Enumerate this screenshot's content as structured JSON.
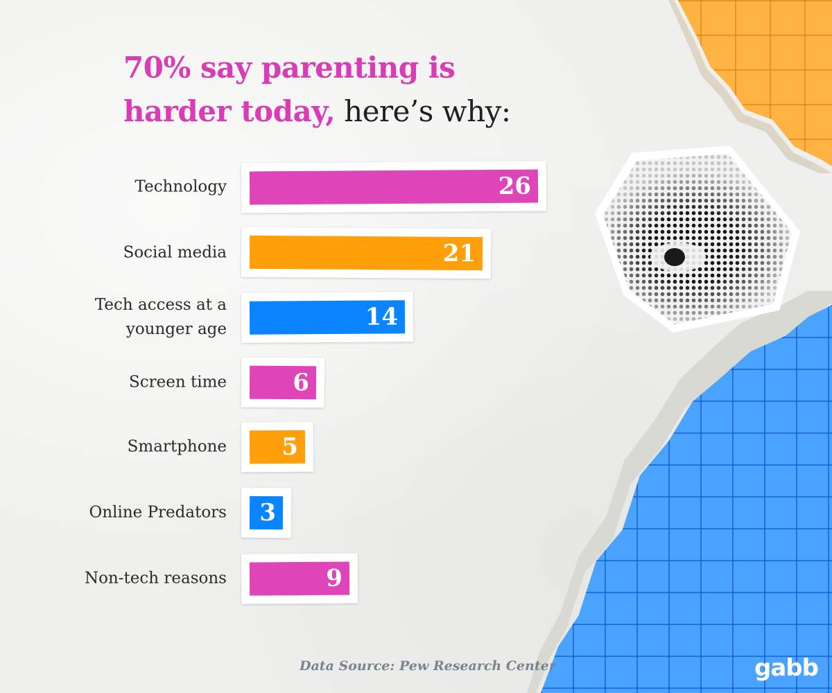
{
  "title": {
    "highlight_line1": "70% say parenting is",
    "highlight_line2": "harder today,",
    "rest": " here’s why:"
  },
  "chart_data": {
    "type": "bar",
    "orientation": "horizontal",
    "categories": [
      "Technology",
      "Social media",
      "Tech access at a younger age",
      "Screen time",
      "Smartphone",
      "Online Predators",
      "Non-tech reasons"
    ],
    "label_lines": [
      [
        "Technology"
      ],
      [
        "Social media"
      ],
      [
        "Tech access at a",
        "younger age"
      ],
      [
        "Screen time"
      ],
      [
        "Smartphone"
      ],
      [
        "Online Predators"
      ],
      [
        "Non-tech reasons"
      ]
    ],
    "values": [
      26,
      21,
      14,
      6,
      5,
      3,
      9
    ],
    "colors": [
      "#dd45b9",
      "#ff9f0a",
      "#0a84ff",
      "#dd45b9",
      "#ff9f0a",
      "#0a84ff",
      "#dd45b9"
    ],
    "data_labels": true
  },
  "source": "Data Source: Pew Research Center",
  "logo": "gabb"
}
